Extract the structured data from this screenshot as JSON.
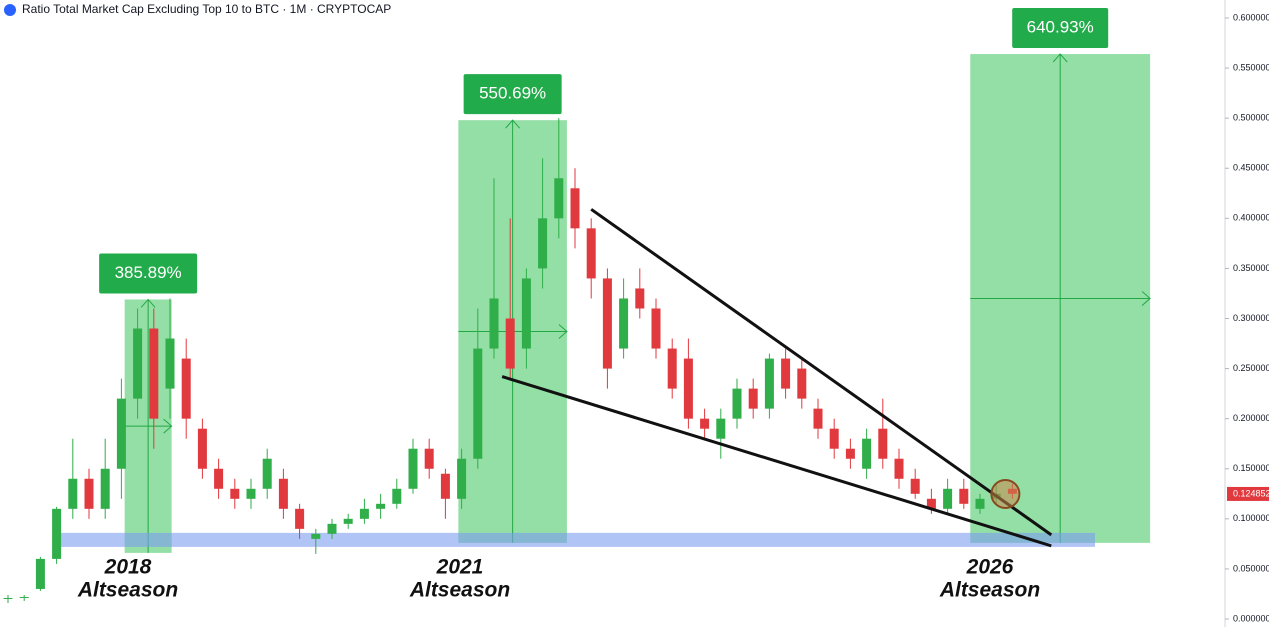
{
  "chart_data": {
    "type": "candlestick",
    "title": "Ratio Total Market Cap Excluding Top 10 to BTC · 1M · CRYPTOCAP",
    "up_color": "#2fae4a",
    "down_color": "#e0393e",
    "ylim": [
      0,
      0.6
    ],
    "yticks": [
      {
        "value": 0.6,
        "label": "0.600000"
      },
      {
        "value": 0.55,
        "label": "0.550000"
      },
      {
        "value": 0.5,
        "label": "0.500000"
      },
      {
        "value": 0.45,
        "label": "0.450000"
      },
      {
        "value": 0.4,
        "label": "0.400000"
      },
      {
        "value": 0.35,
        "label": "0.350000"
      },
      {
        "value": 0.3,
        "label": "0.300000"
      },
      {
        "value": 0.25,
        "label": "0.250000"
      },
      {
        "value": 0.2,
        "label": "0.200000"
      },
      {
        "value": 0.15,
        "label": "0.150000"
      },
      {
        "value": 0.1,
        "label": "0.100000"
      },
      {
        "value": 0.05,
        "label": "0.050000"
      },
      {
        "value": 0,
        "label": "0.000000"
      }
    ],
    "last_price": {
      "value": 0.124852,
      "label": "0.124852"
    },
    "candles": [
      [
        0.02,
        0.024,
        0.016,
        0.021
      ],
      [
        0.021,
        0.024,
        0.018,
        0.022
      ],
      [
        0.03,
        0.062,
        0.028,
        0.06
      ],
      [
        0.06,
        0.112,
        0.055,
        0.11
      ],
      [
        0.11,
        0.18,
        0.1,
        0.14
      ],
      [
        0.14,
        0.15,
        0.1,
        0.11
      ],
      [
        0.11,
        0.18,
        0.1,
        0.15
      ],
      [
        0.15,
        0.24,
        0.12,
        0.22
      ],
      [
        0.22,
        0.31,
        0.2,
        0.29
      ],
      [
        0.29,
        0.31,
        0.17,
        0.2
      ],
      [
        0.23,
        0.32,
        0.2,
        0.28
      ],
      [
        0.26,
        0.28,
        0.18,
        0.2
      ],
      [
        0.19,
        0.2,
        0.14,
        0.15
      ],
      [
        0.15,
        0.16,
        0.12,
        0.13
      ],
      [
        0.13,
        0.14,
        0.11,
        0.12
      ],
      [
        0.12,
        0.14,
        0.11,
        0.13
      ],
      [
        0.13,
        0.17,
        0.12,
        0.16
      ],
      [
        0.14,
        0.15,
        0.1,
        0.11
      ],
      [
        0.11,
        0.115,
        0.08,
        0.09
      ],
      [
        0.08,
        0.09,
        0.065,
        0.085
      ],
      [
        0.085,
        0.1,
        0.08,
        0.095
      ],
      [
        0.095,
        0.105,
        0.09,
        0.1
      ],
      [
        0.1,
        0.12,
        0.095,
        0.11
      ],
      [
        0.11,
        0.125,
        0.1,
        0.115
      ],
      [
        0.115,
        0.14,
        0.11,
        0.13
      ],
      [
        0.13,
        0.18,
        0.125,
        0.17
      ],
      [
        0.17,
        0.18,
        0.14,
        0.15
      ],
      [
        0.145,
        0.15,
        0.1,
        0.12
      ],
      [
        0.12,
        0.17,
        0.11,
        0.16
      ],
      [
        0.16,
        0.31,
        0.15,
        0.27
      ],
      [
        0.27,
        0.44,
        0.26,
        0.32
      ],
      [
        0.3,
        0.4,
        0.24,
        0.25
      ],
      [
        0.27,
        0.35,
        0.25,
        0.34
      ],
      [
        0.35,
        0.46,
        0.33,
        0.4
      ],
      [
        0.4,
        0.5,
        0.38,
        0.44
      ],
      [
        0.43,
        0.45,
        0.37,
        0.39
      ],
      [
        0.39,
        0.4,
        0.32,
        0.34
      ],
      [
        0.34,
        0.35,
        0.23,
        0.25
      ],
      [
        0.27,
        0.34,
        0.26,
        0.32
      ],
      [
        0.33,
        0.35,
        0.3,
        0.31
      ],
      [
        0.31,
        0.32,
        0.26,
        0.27
      ],
      [
        0.27,
        0.28,
        0.22,
        0.23
      ],
      [
        0.26,
        0.28,
        0.19,
        0.2
      ],
      [
        0.2,
        0.21,
        0.18,
        0.19
      ],
      [
        0.18,
        0.21,
        0.16,
        0.2
      ],
      [
        0.2,
        0.24,
        0.19,
        0.23
      ],
      [
        0.23,
        0.24,
        0.2,
        0.21
      ],
      [
        0.21,
        0.265,
        0.2,
        0.26
      ],
      [
        0.26,
        0.27,
        0.22,
        0.23
      ],
      [
        0.25,
        0.26,
        0.21,
        0.22
      ],
      [
        0.21,
        0.22,
        0.18,
        0.19
      ],
      [
        0.19,
        0.2,
        0.16,
        0.17
      ],
      [
        0.17,
        0.18,
        0.15,
        0.16
      ],
      [
        0.15,
        0.19,
        0.14,
        0.18
      ],
      [
        0.19,
        0.22,
        0.15,
        0.16
      ],
      [
        0.16,
        0.17,
        0.13,
        0.14
      ],
      [
        0.14,
        0.15,
        0.12,
        0.125
      ],
      [
        0.12,
        0.13,
        0.105,
        0.11
      ],
      [
        0.11,
        0.14,
        0.105,
        0.13
      ],
      [
        0.13,
        0.14,
        0.11,
        0.115
      ],
      [
        0.11,
        0.125,
        0.105,
        0.12
      ],
      [
        0.12,
        0.135,
        0.115,
        0.125
      ],
      [
        0.13,
        0.135,
        0.12,
        0.125
      ]
    ],
    "zones": [
      {
        "from": 7.2,
        "to": 10.1,
        "bottom": 0.066,
        "top": 0.319,
        "gain": {
          "value": 385.89,
          "label": "385.89%"
        },
        "year": "2018",
        "caption": "Altseason"
      },
      {
        "from": 27.8,
        "to": 34.5,
        "bottom": 0.076,
        "top": 0.498,
        "gain": {
          "value": 550.69,
          "label": "550.69%"
        },
        "year": "2021",
        "caption": "Altseason"
      },
      {
        "from": 59.4,
        "to": 70.5,
        "bottom": 0.076,
        "top": 0.564,
        "gain": {
          "value": 640.93,
          "label": "640.93%"
        },
        "year": "2026",
        "caption": "Altseason"
      }
    ],
    "support_band": {
      "from": 3.2,
      "to": 67.1,
      "bottom": 0.072,
      "top": 0.086
    },
    "wedge": [
      {
        "from": [
          36.0,
          0.409
        ],
        "to": [
          64.4,
          0.084
        ]
      },
      {
        "from": [
          30.5,
          0.242
        ],
        "to": [
          64.4,
          0.073
        ]
      }
    ]
  }
}
